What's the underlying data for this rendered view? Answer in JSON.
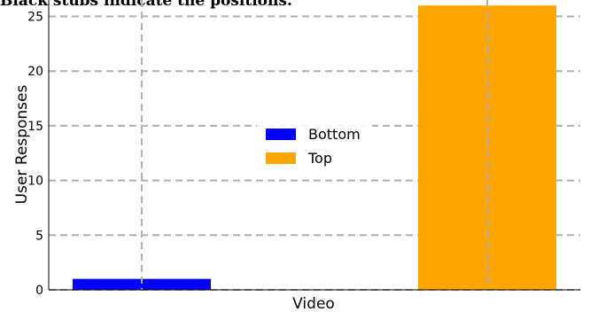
{
  "caption": "Black stubs indicate the positions.",
  "chart_data": {
    "type": "bar",
    "title": "",
    "xlabel": "Video",
    "ylabel": "User Responses",
    "ylim": [
      0,
      26.5
    ],
    "yticks": [
      0,
      5,
      10,
      15,
      20,
      25
    ],
    "grid": true,
    "legend": {
      "placement": "center"
    },
    "series": [
      {
        "name": "Bottom",
        "color": "#0000ff",
        "values": [
          1
        ]
      },
      {
        "name": "Top",
        "color": "#ffa500",
        "values": [
          26
        ]
      }
    ]
  }
}
